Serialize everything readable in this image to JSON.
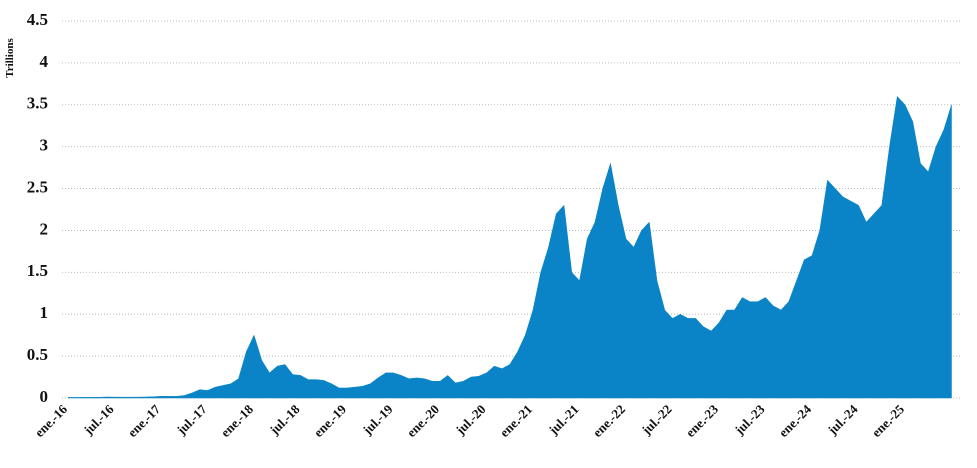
{
  "chart_data": {
    "type": "area",
    "y_label": "Trillions",
    "color": "#0a84c6",
    "grid": true,
    "ylim": [
      0,
      4.5
    ],
    "yticks": [
      0,
      0.5,
      1,
      1.5,
      2,
      2.5,
      3,
      3.5,
      4,
      4.5
    ],
    "categories": [
      "ene.-16",
      null,
      null,
      null,
      null,
      null,
      "jul.-16",
      null,
      null,
      null,
      null,
      null,
      "ene.-17",
      null,
      null,
      null,
      null,
      null,
      "jul.-17",
      null,
      null,
      null,
      null,
      null,
      "ene.-18",
      null,
      null,
      null,
      null,
      null,
      "jul.-18",
      null,
      null,
      null,
      null,
      null,
      "ene.-19",
      null,
      null,
      null,
      null,
      null,
      "jul.-19",
      null,
      null,
      null,
      null,
      null,
      "ene.-20",
      null,
      null,
      null,
      null,
      null,
      "jul.-20",
      null,
      null,
      null,
      null,
      null,
      "ene.-21",
      null,
      null,
      null,
      null,
      null,
      "jul.-21",
      null,
      null,
      null,
      null,
      null,
      "ene.-22",
      null,
      null,
      null,
      null,
      null,
      "jul.-22",
      null,
      null,
      null,
      null,
      null,
      "ene.-23",
      null,
      null,
      null,
      null,
      null,
      "jul.-23",
      null,
      null,
      null,
      null,
      null,
      "ene.-24",
      null,
      null,
      null,
      null,
      null,
      "jul.-24",
      null,
      null,
      null,
      null,
      null,
      "ene.-25",
      null,
      null,
      null,
      null,
      null,
      null
    ],
    "values": [
      0.007,
      0.007,
      0.008,
      0.008,
      0.009,
      0.012,
      0.011,
      0.01,
      0.01,
      0.011,
      0.012,
      0.015,
      0.02,
      0.02,
      0.02,
      0.03,
      0.06,
      0.1,
      0.09,
      0.13,
      0.15,
      0.17,
      0.23,
      0.55,
      0.75,
      0.45,
      0.3,
      0.38,
      0.4,
      0.28,
      0.27,
      0.22,
      0.22,
      0.21,
      0.17,
      0.12,
      0.12,
      0.13,
      0.14,
      0.17,
      0.24,
      0.3,
      0.3,
      0.27,
      0.23,
      0.24,
      0.23,
      0.2,
      0.2,
      0.27,
      0.18,
      0.2,
      0.25,
      0.26,
      0.3,
      0.38,
      0.35,
      0.4,
      0.55,
      0.75,
      1.05,
      1.5,
      1.8,
      2.2,
      2.3,
      1.5,
      1.4,
      1.9,
      2.1,
      2.5,
      2.8,
      2.3,
      1.9,
      1.8,
      2.0,
      2.1,
      1.4,
      1.05,
      0.95,
      1.0,
      0.95,
      0.95,
      0.85,
      0.8,
      0.9,
      1.05,
      1.05,
      1.2,
      1.15,
      1.15,
      1.2,
      1.1,
      1.05,
      1.15,
      1.4,
      1.65,
      1.7,
      2.0,
      2.6,
      2.5,
      2.4,
      2.35,
      2.3,
      2.1,
      2.2,
      2.3,
      3.0,
      3.6,
      3.5,
      3.3,
      2.8,
      2.7,
      3.0,
      3.2,
      3.5
    ]
  }
}
